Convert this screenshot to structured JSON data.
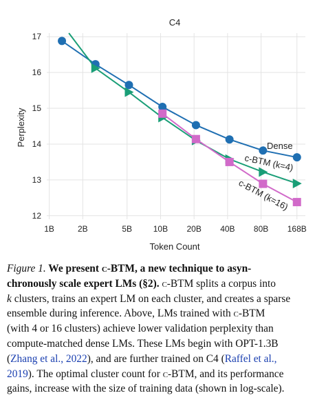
{
  "chart_data": {
    "type": "line",
    "title": "C4",
    "xlabel": "Token Count",
    "ylabel": "Perplexity",
    "x_scale": "log",
    "x_tick_labels": [
      "1B",
      "2B",
      "5B",
      "10B",
      "20B",
      "40B",
      "80B",
      "168B"
    ],
    "x_tick_values": [
      1,
      2,
      5,
      10,
      20,
      40,
      80,
      168
    ],
    "y_ticks": [
      12,
      13,
      14,
      15,
      16,
      17
    ],
    "ylim": [
      11.9,
      17.1
    ],
    "grid": true,
    "series": [
      {
        "name": "Dense",
        "color": "#1f6fb2",
        "marker": "circle",
        "x": [
          1.3,
          2.6,
          5.2,
          10.4,
          20.8,
          41.6,
          83.2,
          168
        ],
        "y": [
          16.88,
          16.23,
          15.65,
          15.04,
          14.53,
          14.13,
          13.82,
          13.63
        ]
      },
      {
        "name": "c-BTM (k=4)",
        "color": "#1a9e77",
        "marker": "triangle",
        "x": [
          2.6,
          5.2,
          10.4,
          20.8,
          41.6,
          83.2,
          168
        ],
        "y": [
          16.12,
          15.45,
          14.74,
          14.1,
          13.58,
          13.22,
          12.9
        ],
        "line_start": {
          "x": 1.5,
          "y": 17.1
        }
      },
      {
        "name": "c-BTM (k=16)",
        "color": "#d16ac9",
        "marker": "square",
        "x": [
          10.4,
          20.8,
          41.6,
          83.2,
          168
        ],
        "y": [
          14.85,
          14.14,
          13.5,
          12.89,
          12.38
        ]
      }
    ]
  },
  "caption": {
    "lines": [
      [
        {
          "t": "Figure 1.",
          "s": "fig"
        },
        {
          "t": " We present ",
          "s": "bold"
        },
        {
          "t": "c-BTM",
          "s": "bold sc"
        },
        {
          "t": ", a new technique to asyn-",
          "s": "bold"
        }
      ],
      [
        {
          "t": "chronously scale expert LMs (§2).",
          "s": "bold"
        },
        {
          "t": " ",
          "s": ""
        },
        {
          "t": "c-BTM",
          "s": "sc"
        },
        {
          "t": " splits a corpus into",
          "s": ""
        }
      ],
      [
        {
          "t": "k",
          "s": "it"
        },
        {
          "t": " clusters, trains an expert LM on each cluster, and creates a sparse",
          "s": ""
        }
      ],
      [
        {
          "t": "ensemble during inference.  Above, LMs trained with ",
          "s": ""
        },
        {
          "t": "c-BTM",
          "s": "sc"
        }
      ],
      [
        {
          "t": "(with 4 or 16 clusters) achieve lower validation perplexity than",
          "s": ""
        }
      ],
      [
        {
          "t": "compute-matched dense LMs. These LMs begin with OPT-1.3B",
          "s": ""
        }
      ],
      [
        {
          "t": "(",
          "s": ""
        },
        {
          "t": "Zhang et al., 2022",
          "s": "link"
        },
        {
          "t": "), and are further trained on C4 (",
          "s": ""
        },
        {
          "t": "Raffel et al.,",
          "s": "link"
        }
      ],
      [
        {
          "t": "2019",
          "s": "link"
        },
        {
          "t": "). The optimal cluster count for ",
          "s": ""
        },
        {
          "t": "c-BTM",
          "s": "sc"
        },
        {
          "t": ", and its performance",
          "s": ""
        }
      ],
      [
        {
          "t": "gains, increase with the size of training data (shown in log-scale).",
          "s": ""
        }
      ]
    ]
  }
}
